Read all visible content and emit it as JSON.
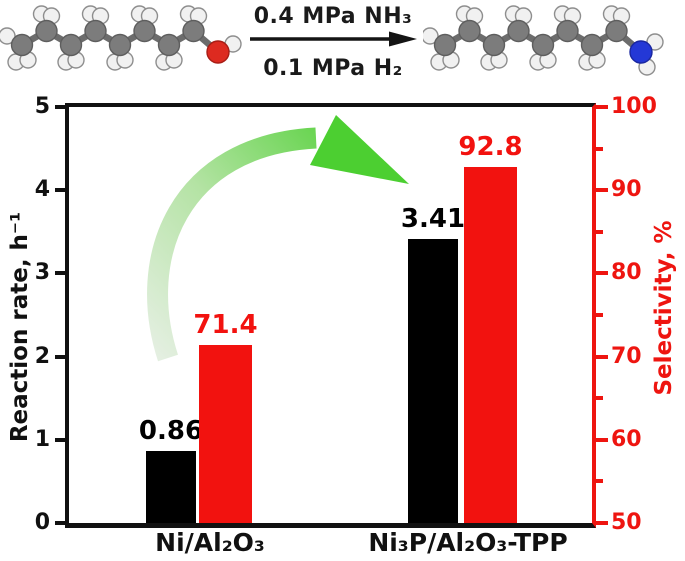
{
  "scheme": {
    "condition_top": "0.4 MPa NH₃",
    "condition_bottom": "0.1 MPa H₂"
  },
  "icons": {
    "reaction_arrow": "black-right-arrow",
    "improvement_arrow": "green-curved-swoosh-arrow",
    "reactant_molecule": "ball-and-stick alcohol chain (C gray, H white, O red)",
    "product_molecule": "ball-and-stick amine chain (C gray, H white, N blue)"
  },
  "chart_data": {
    "type": "bar",
    "categories": [
      "Ni/Al₂O₃",
      "Ni₃P/Al₂O₃-TPP"
    ],
    "series": [
      {
        "name": "Reaction rate",
        "axis": "left",
        "color": "#000000",
        "values": [
          0.86,
          3.41
        ],
        "labels": [
          "0.86",
          "3.41"
        ]
      },
      {
        "name": "Selectivity",
        "axis": "right",
        "color": "#f2120f",
        "values": [
          71.4,
          92.8
        ],
        "labels": [
          "71.4",
          "92.8"
        ]
      }
    ],
    "left_axis": {
      "label": "Reaction rate, h⁻¹",
      "min": 0,
      "max": 5,
      "major_ticks": [
        0,
        1,
        2,
        3,
        4,
        5
      ],
      "tick_labels": [
        "0",
        "1",
        "2",
        "3",
        "4",
        "5"
      ]
    },
    "right_axis": {
      "label": "Selectivity, %",
      "min": 50,
      "max": 100,
      "major_ticks": [
        50,
        60,
        70,
        80,
        90,
        100
      ],
      "tick_labels": [
        "50",
        "60",
        "70",
        "80",
        "90",
        "100"
      ],
      "minor_ticks": [
        55,
        65,
        75,
        85,
        95
      ]
    },
    "grid": false,
    "legend": "none"
  },
  "colors": {
    "bar_black": "#000000",
    "bar_red": "#f2120f",
    "axis_left": "#111111",
    "axis_right": "#ee1510",
    "green_arrow_tail": "#e4efe1",
    "green_arrow_mid": "#b4e3a4",
    "green_arrow_head": "#4ccf31",
    "carbon": "#7c7c7c",
    "carbon_edge": "#5e5e5e",
    "hydrogen": "#f1f1f1",
    "hydrogen_edge": "#8e8e8e",
    "oxygen": "#dd2a20",
    "oxygen_edge": "#a81d15",
    "nitrogen": "#2438d6",
    "nitrogen_edge": "#1a27a0",
    "bond": "#6c6c6c",
    "bond_h": "#909090"
  }
}
